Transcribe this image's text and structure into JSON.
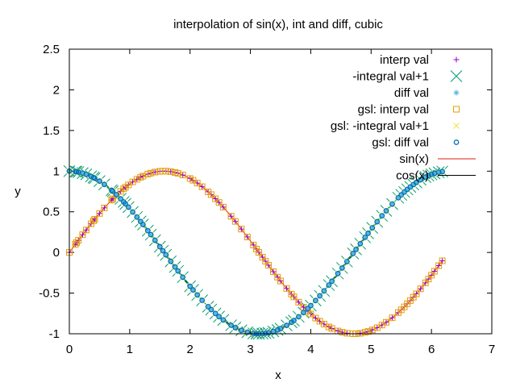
{
  "chart_data": {
    "type": "scatter",
    "title": "interpolation of sin(x), int and diff, cubic",
    "xlabel": "x",
    "ylabel": "y",
    "xlim": [
      0,
      7
    ],
    "ylim": [
      -1,
      2.5
    ],
    "xticks": [
      "0",
      "1",
      "2",
      "3",
      "4",
      "5",
      "6",
      "7"
    ],
    "yticks": [
      "-1",
      "-0.5",
      "0",
      "0.5",
      "1",
      "1.5",
      "2",
      "2.5"
    ],
    "legend_position": "top-right",
    "grid": false,
    "sample_x": [
      0.0,
      0.1,
      0.12,
      0.15,
      0.22,
      0.28,
      0.36,
      0.4,
      0.42,
      0.5,
      0.58,
      0.7,
      0.72,
      0.78,
      0.85,
      0.9,
      0.93,
      0.98,
      1.05,
      1.12,
      1.18,
      1.22,
      1.3,
      1.35,
      1.42,
      1.5,
      1.55,
      1.6,
      1.68,
      1.75,
      1.8,
      1.88,
      2.0,
      2.05,
      2.12,
      2.2,
      2.3,
      2.35,
      2.42,
      2.48,
      2.55,
      2.68,
      2.75,
      2.85,
      2.95,
      3.05,
      3.1,
      3.14,
      3.2,
      3.25,
      3.3,
      3.38,
      3.45,
      3.5,
      3.6,
      3.68,
      3.72,
      3.8,
      3.88,
      3.95,
      4.0,
      4.08,
      4.15,
      4.22,
      4.3,
      4.35,
      4.45,
      4.52,
      4.6,
      4.7,
      4.75,
      4.82,
      4.9,
      4.95,
      5.02,
      5.1,
      5.18,
      5.25,
      5.35,
      5.45,
      5.5,
      5.55,
      5.6,
      5.65,
      5.7,
      5.75,
      5.82,
      5.9,
      5.95,
      6.0,
      6.05,
      6.12,
      6.18
    ],
    "series": [
      {
        "name": "interp val",
        "marker": "plus",
        "color": "#9400d3",
        "of": "sin"
      },
      {
        "name": "-integral val+1",
        "marker": "cross",
        "color": "#009e73",
        "of": "cos"
      },
      {
        "name": "diff val",
        "marker": "star",
        "color": "#56b4e9",
        "of": "cos"
      },
      {
        "name": "gsl: interp val",
        "marker": "square",
        "color": "#e69f00",
        "of": "sin"
      },
      {
        "name": "gsl: -integral val+1",
        "marker": "x",
        "color": "#f0e442",
        "of": "cos"
      },
      {
        "name": "gsl: diff val",
        "marker": "circle",
        "color": "#0072b2",
        "of": "cos"
      },
      {
        "name": "sin(x)",
        "marker": "line",
        "color": "#e51e10",
        "of": "sin"
      },
      {
        "name": "cos(x)",
        "marker": "line",
        "color": "#000000",
        "of": "cos"
      }
    ]
  }
}
